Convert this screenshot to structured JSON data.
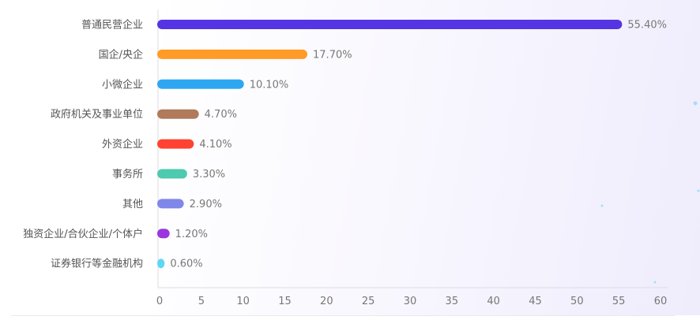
{
  "chart_data": {
    "type": "bar",
    "orientation": "horizontal",
    "categories": [
      "普通民营企业",
      "国企/央企",
      "小微企业",
      "政府机关及事业单位",
      "外资企业",
      "事务所",
      "其他",
      "独资企业/合伙企业/个体户",
      "证券银行等金融机构"
    ],
    "values": [
      55.4,
      17.7,
      10.1,
      4.7,
      4.1,
      3.3,
      2.9,
      1.2,
      0.6
    ],
    "value_labels": [
      "55.40%",
      "17.70%",
      "10.10%",
      "4.70%",
      "4.10%",
      "3.30%",
      "2.90%",
      "1.20%",
      "0.60%"
    ],
    "colors": [
      "#5535e3",
      "#ff9b26",
      "#2ea7f2",
      "#b07a5b",
      "#ff4332",
      "#4ecaae",
      "#7f88e8",
      "#9b36dd",
      "#5fd6f4"
    ],
    "xlim": [
      0,
      60
    ],
    "xticks": [
      0,
      5,
      10,
      15,
      20,
      25,
      30,
      35,
      40,
      45,
      50,
      55,
      60
    ],
    "title": "",
    "xlabel": "",
    "ylabel": "",
    "grid": false,
    "legend": "none"
  }
}
